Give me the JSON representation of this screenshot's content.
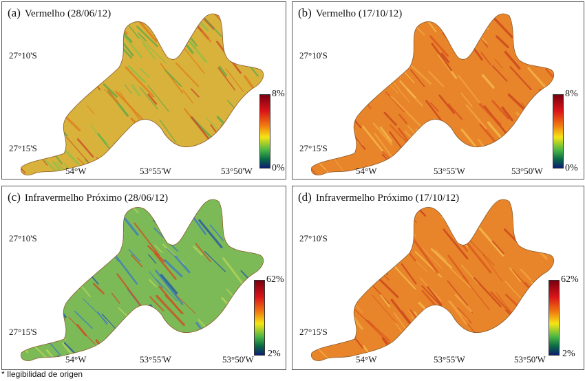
{
  "panels": [
    {
      "label": "(a)",
      "title": "Vermelho (28/06/12)",
      "lat_top": "27°10'S",
      "lat_bottom": "27°15'S",
      "lon": [
        "54°W",
        "53°55'W",
        "53°50'W"
      ],
      "scale_max": "8%",
      "scale_min": "0%",
      "palette": "mixed-green-orange"
    },
    {
      "label": "(b)",
      "title": "Vermelho (17/10/12)",
      "lat_top": "27°10'S",
      "lat_bottom": "27°15'S",
      "lon": [
        "54°W",
        "53°55'W",
        "53°50'W"
      ],
      "scale_max": "8%",
      "scale_min": "0%",
      "palette": "orange"
    },
    {
      "label": "(c)",
      "title": "Infravermelho Próximo (28/06/12)",
      "lat_top": "27°10'S",
      "lat_bottom": "27°15'S",
      "lon": [
        "54°W",
        "53°55'W",
        "53°50'W"
      ],
      "scale_max": "62%",
      "scale_min": "2%",
      "palette": "green-blue"
    },
    {
      "label": "(d)",
      "title": "Infravermelho Próximo (17/10/12)",
      "lat_top": "27°10'S",
      "lat_bottom": "27°15'S",
      "lon": [
        "54°W",
        "53°55'W",
        "53°50'W"
      ],
      "scale_max": "62%",
      "scale_min": "2%",
      "palette": "orange"
    }
  ],
  "palettes": {
    "mixed-green-orange": {
      "base": "#d8b23a",
      "stripes": [
        "#5aa84a",
        "#e07a1e",
        "#8cc04a",
        "#c9462a"
      ]
    },
    "orange": {
      "base": "#e8852a",
      "stripes": [
        "#f2a640",
        "#d9541e",
        "#f5c050",
        "#c8401c"
      ]
    },
    "green-blue": {
      "base": "#7cba58",
      "stripes": [
        "#1e4fa8",
        "#3a78c4",
        "#b9d45a",
        "#d24a20"
      ]
    }
  },
  "footnote": "* Ilegibilidad de origen"
}
